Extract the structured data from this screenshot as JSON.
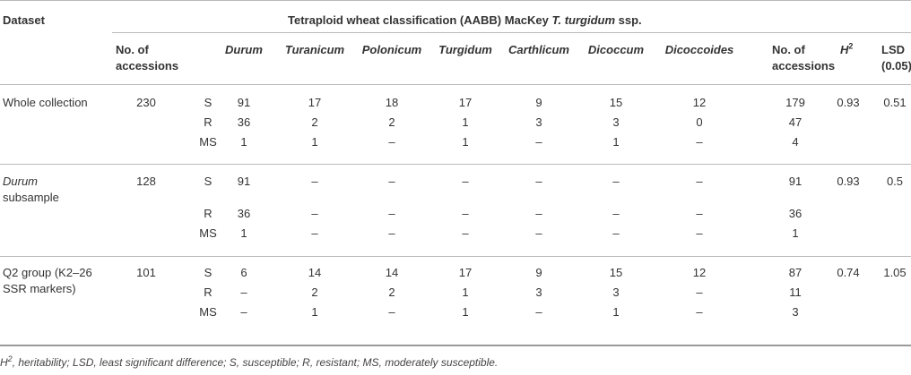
{
  "header": {
    "dataset": "Dataset",
    "group_pre": "Tetraploid wheat classification (AABB) MacKey ",
    "group_it": "T. turgidum",
    "group_post": " ssp.",
    "no_acc_1a": "No. of",
    "no_acc_1b": "accessions",
    "ssp": [
      "Durum",
      "Turanicum",
      "Polonicum",
      "Turgidum",
      "Carthlicum",
      "Dicoccum",
      "Dicoccoides"
    ],
    "no_acc_2a": "No. of",
    "no_acc_2b": "accessions",
    "h2": "H",
    "h2_sup": "2",
    "lsd_a": "LSD",
    "lsd_b": "(0.05)"
  },
  "groups": [
    {
      "name_lines": [
        "Whole collection"
      ],
      "name_italic_first": false,
      "n": "230",
      "h2": "0.93",
      "lsd": "0.51",
      "rows": [
        {
          "type": "S",
          "vals": [
            "91",
            "17",
            "18",
            "17",
            "9",
            "15",
            "12"
          ],
          "total": "179"
        },
        {
          "type": "R",
          "vals": [
            "36",
            "2",
            "2",
            "1",
            "3",
            "3",
            "0"
          ],
          "total": "47"
        },
        {
          "type": "MS",
          "vals": [
            "1",
            "1",
            "–",
            "1",
            "–",
            "1",
            "–"
          ],
          "total": "4"
        }
      ]
    },
    {
      "name_lines": [
        "Durum",
        "subsample"
      ],
      "name_italic_first": true,
      "n": "128",
      "h2": "0.93",
      "lsd": "0.5",
      "rows": [
        {
          "type": "S",
          "vals": [
            "91",
            "–",
            "–",
            "–",
            "–",
            "–",
            "–"
          ],
          "total": "91"
        },
        {
          "type": "R",
          "vals": [
            "36",
            "–",
            "–",
            "–",
            "–",
            "–",
            "–"
          ],
          "total": "36"
        },
        {
          "type": "MS",
          "vals": [
            "1",
            "–",
            "–",
            "–",
            "–",
            "–",
            "–"
          ],
          "total": "1"
        }
      ]
    },
    {
      "name_lines": [
        "Q2 group (K2–26",
        "SSR markers)"
      ],
      "name_italic_first": false,
      "n": "101",
      "h2": "0.74",
      "lsd": "1.05",
      "rows": [
        {
          "type": "S",
          "vals": [
            "6",
            "14",
            "14",
            "17",
            "9",
            "15",
            "12"
          ],
          "total": "87"
        },
        {
          "type": "R",
          "vals": [
            "–",
            "2",
            "2",
            "1",
            "3",
            "3",
            "–"
          ],
          "total": "11"
        },
        {
          "type": "MS",
          "vals": [
            "–",
            "1",
            "–",
            "1",
            "–",
            "1",
            "–"
          ],
          "total": "3"
        }
      ]
    }
  ],
  "footnote_h": "H",
  "footnote_sup": "2",
  "footnote_rest": ", heritability; LSD, least significant difference; S, susceptible; R, resistant; MS, moderately susceptible."
}
